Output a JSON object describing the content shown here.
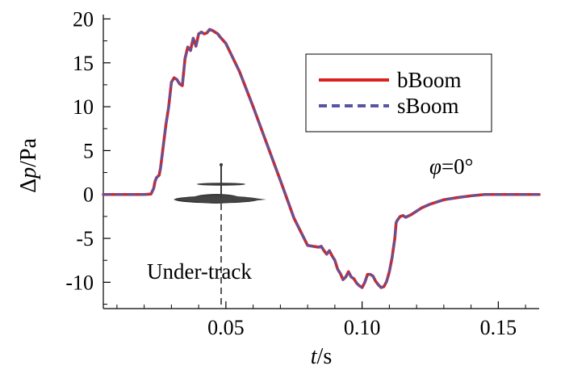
{
  "chart_data": {
    "type": "line",
    "title": "",
    "xlabel_italic": "t",
    "xlabel_unit": "/s",
    "ylabel_delta": "Δ",
    "ylabel_italic": "p",
    "ylabel_unit": "/Pa",
    "xlim": [
      0.005,
      0.165
    ],
    "ylim": [
      -13,
      20.5
    ],
    "xticks": [
      0.05,
      0.1,
      0.15
    ],
    "xtick_labels": [
      "0.05",
      "0.10",
      "0.15"
    ],
    "yticks": [
      20,
      15,
      10,
      5,
      0,
      -5,
      -10
    ],
    "ytick_labels": [
      "20",
      "15",
      "10",
      "5",
      "0",
      "-5",
      "-10"
    ],
    "grid": false,
    "legend_position": "top-right",
    "series": [
      {
        "name": "bBoom",
        "color": "#d9231f",
        "dash": "solid",
        "x": [
          0.005,
          0.01,
          0.015,
          0.02,
          0.0225,
          0.0235,
          0.024,
          0.0245,
          0.0255,
          0.026,
          0.027,
          0.028,
          0.029,
          0.03,
          0.031,
          0.032,
          0.033,
          0.034,
          0.035,
          0.036,
          0.037,
          0.038,
          0.039,
          0.04,
          0.041,
          0.042,
          0.043,
          0.044,
          0.045,
          0.046,
          0.047,
          0.048,
          0.05,
          0.055,
          0.06,
          0.065,
          0.07,
          0.075,
          0.08,
          0.084,
          0.085,
          0.086,
          0.087,
          0.088,
          0.089,
          0.09,
          0.091,
          0.092,
          0.093,
          0.094,
          0.095,
          0.096,
          0.097,
          0.098,
          0.099,
          0.1,
          0.101,
          0.102,
          0.103,
          0.104,
          0.105,
          0.106,
          0.107,
          0.108,
          0.109,
          0.11,
          0.111,
          0.112,
          0.1125,
          0.113,
          0.114,
          0.115,
          0.116,
          0.118,
          0.12,
          0.122,
          0.125,
          0.13,
          0.135,
          0.14,
          0.145,
          0.15,
          0.155,
          0.16,
          0.165
        ],
        "y": [
          0.0,
          0.0,
          0.0,
          0.0,
          0.05,
          0.7,
          1.5,
          1.9,
          2.2,
          3.0,
          5.5,
          8.0,
          10.0,
          12.8,
          13.3,
          13.1,
          12.6,
          12.4,
          15.5,
          16.8,
          16.4,
          17.8,
          16.9,
          18.3,
          18.5,
          18.3,
          18.4,
          18.8,
          18.7,
          18.5,
          18.3,
          17.9,
          17.2,
          14.0,
          10.0,
          5.8,
          1.6,
          -2.7,
          -5.8,
          -6.0,
          -5.9,
          -6.4,
          -6.8,
          -6.4,
          -7.0,
          -7.5,
          -8.5,
          -9.0,
          -9.7,
          -9.4,
          -8.8,
          -9.4,
          -9.6,
          -10.1,
          -10.4,
          -10.6,
          -10.0,
          -9.1,
          -9.1,
          -9.3,
          -9.9,
          -10.3,
          -10.6,
          -10.5,
          -9.9,
          -8.8,
          -7.2,
          -5.0,
          -3.2,
          -2.9,
          -2.5,
          -2.4,
          -2.6,
          -2.3,
          -1.9,
          -1.5,
          -1.1,
          -0.6,
          -0.35,
          -0.15,
          0.0,
          0.0,
          0.0,
          0.0,
          0.0
        ]
      },
      {
        "name": "sBoom",
        "color": "#5756a6",
        "dash": "dashed",
        "same_as": "bBoom"
      }
    ],
    "annotations": [
      {
        "text": "Under-track"
      },
      {
        "text_symbol": "φ",
        "text_rest": "=0°"
      }
    ]
  }
}
